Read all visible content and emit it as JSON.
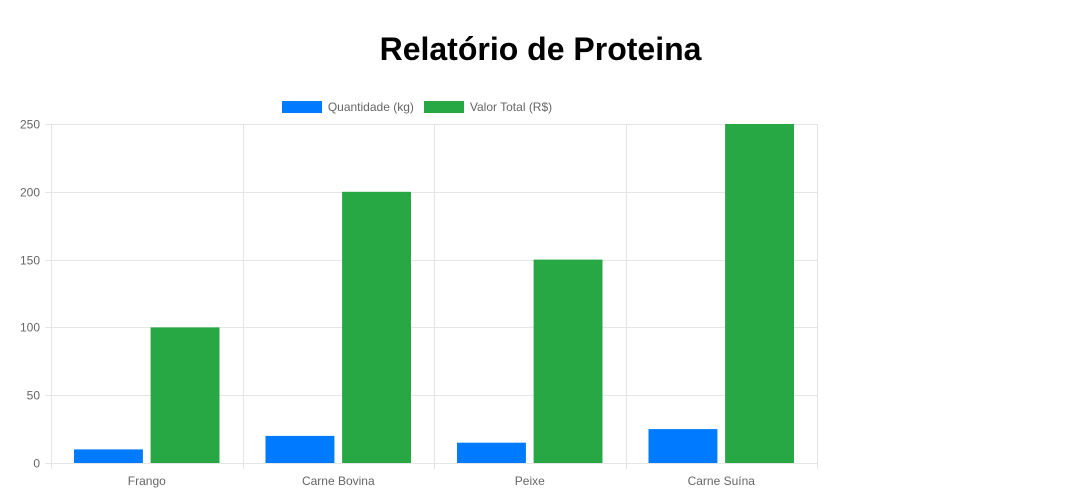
{
  "title": "Relatório de Proteina",
  "colors": {
    "quantity": "#007bff",
    "value": "#28a745",
    "grid": "#e5e5e5",
    "tick_text": "#666666"
  },
  "chart_data": {
    "type": "bar",
    "title": "Relatório de Proteina",
    "categories": [
      "Frango",
      "Carne Bovina",
      "Peixe",
      "Carne Suína"
    ],
    "series": [
      {
        "name": "Quantidade (kg)",
        "values": [
          10,
          20,
          15,
          25
        ],
        "color": "#007bff"
      },
      {
        "name": "Valor Total (R$)",
        "values": [
          100,
          200,
          150,
          250
        ],
        "color": "#28a745"
      }
    ],
    "ylim": [
      0,
      250
    ],
    "yticks": [
      "0",
      "50",
      "100",
      "150",
      "200",
      "250"
    ],
    "xlabel": "",
    "ylabel": "",
    "grid": true,
    "legend_position": "top"
  }
}
